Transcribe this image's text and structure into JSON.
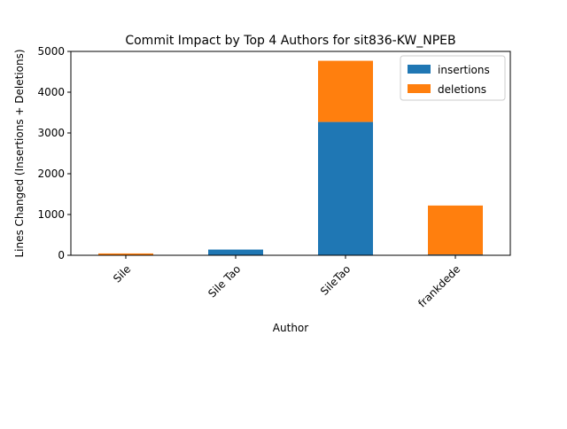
{
  "chart_data": {
    "type": "bar",
    "stacked": true,
    "title": "Commit Impact by Top 4 Authors for sit836-KW_NPEB",
    "xlabel": "Author",
    "ylabel": "Lines Changed (Insertions + Deletions)",
    "categories": [
      "Sile",
      "Sile Tao",
      "SileTao",
      "frankdede"
    ],
    "series": [
      {
        "name": "insertions",
        "color": "#1f77b4",
        "values": [
          10,
          140,
          3270,
          20
        ]
      },
      {
        "name": "deletions",
        "color": "#ff7f0e",
        "values": [
          35,
          0,
          1500,
          1200
        ]
      }
    ],
    "ylim": [
      0,
      5000
    ],
    "yticks": [
      "0",
      "1000",
      "2000",
      "3000",
      "4000",
      "5000"
    ],
    "grid": false,
    "legend_position": "top-right"
  }
}
